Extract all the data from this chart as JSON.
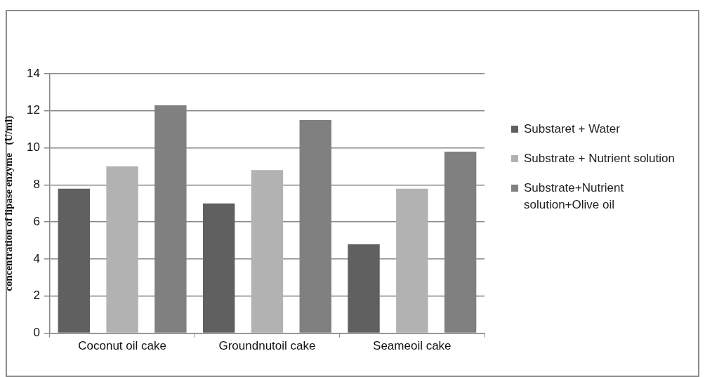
{
  "chart_data": {
    "type": "bar",
    "ylabel": "concentration of lipase enzyme   (U/ml)",
    "categories": [
      "Coconut oil cake",
      "Groundnutoil cake",
      "Seameoil cake"
    ],
    "series": [
      {
        "name": "Substaret + Water",
        "color": "#606060",
        "values": [
          7.8,
          7.0,
          4.8
        ]
      },
      {
        "name": "Substrate + Nutrient solution",
        "color": "#b2b2b2",
        "values": [
          9.0,
          8.8,
          7.8
        ]
      },
      {
        "name": "Substrate+Nutrient solution+Olive oil",
        "color": "#808080",
        "values": [
          12.3,
          11.5,
          9.8
        ]
      }
    ],
    "ylim": [
      0,
      14
    ],
    "yticks": [
      0,
      2,
      4,
      6,
      8,
      10,
      12,
      14
    ],
    "grid": "y",
    "legend": "right"
  }
}
